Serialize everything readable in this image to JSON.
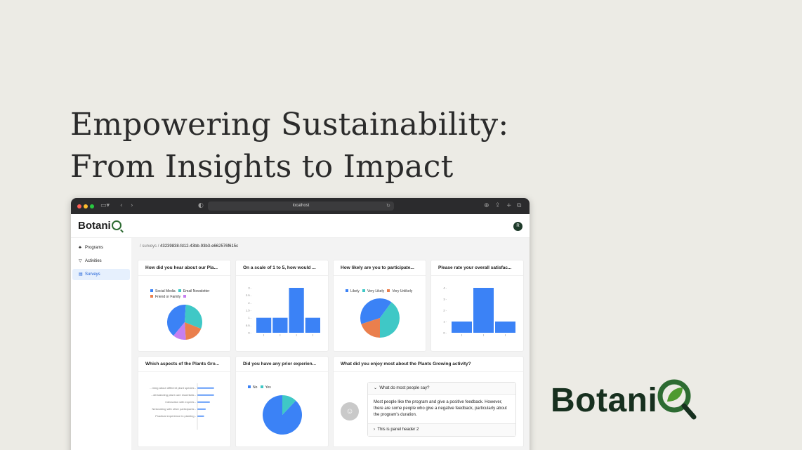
{
  "headline": {
    "line1": "Empowering Sustainability:",
    "line2": "From Insights to Impact"
  },
  "browser": {
    "url": "localhost"
  },
  "app": {
    "logo_text": "Botani",
    "avatar_initial": "R"
  },
  "sidebar": {
    "items": [
      {
        "label": "Programs",
        "icon": "sprout-icon"
      },
      {
        "label": "Activities",
        "icon": "trophy-icon"
      },
      {
        "label": "Surveys",
        "icon": "survey-icon"
      }
    ]
  },
  "breadcrumb": {
    "root": "surveys",
    "sep": "/",
    "current": "43239838-fd12-43bb-93b3-e662576f615c"
  },
  "cards": {
    "c1": {
      "title": "How did you hear about our Pla...",
      "legend": [
        "Social Media",
        "Email Newsletter",
        "Friend or Family",
        ""
      ]
    },
    "c2": {
      "title": "On a scale of 1 to 5, how would ..."
    },
    "c3": {
      "title": "How likely are you to participate...",
      "legend": [
        "Likely",
        "Very Likely",
        "Very Unlikely"
      ]
    },
    "c4": {
      "title": "Please rate your overall satisfac..."
    },
    "c5": {
      "title": "Which aspects of the Plants Gro...",
      "labels": [
        "...rning about different plant species",
        "...derstanding plant care essentials",
        "Interaction with experts",
        "Networking with other participants",
        "Practical experience in planting"
      ]
    },
    "c6": {
      "title": "Did you have any prior experien...",
      "legend": [
        "No",
        "Yes"
      ]
    },
    "c7": {
      "title": "What did you enjoy most about the Plants Growing activity?",
      "panel1_header": "What do most people say?",
      "panel1_body": "Most people like the program and give a positive feedback. However, there are some people who give a negative feedback, particularly about the program's duration.",
      "panel2_header": "This is panel header 2"
    }
  },
  "chart_data": [
    {
      "type": "pie",
      "categories": [
        "Social Media",
        "Email Newsletter",
        "Friend or Family",
        ""
      ],
      "values": [
        40,
        30,
        18,
        12
      ]
    },
    {
      "type": "bar",
      "categories": [
        "",
        "",
        "",
        ""
      ],
      "values": [
        1,
        1,
        3,
        1
      ],
      "ylim": [
        0,
        3
      ],
      "yticks": [
        "0",
        "0.5",
        "1",
        "1.5",
        "2",
        "2.5",
        "3"
      ]
    },
    {
      "type": "pie",
      "categories": [
        "Likely",
        "Very Likely",
        "Very Unlikely"
      ],
      "values": [
        40,
        40,
        20
      ]
    },
    {
      "type": "bar",
      "categories": [
        "",
        "",
        ""
      ],
      "values": [
        1,
        4,
        1
      ],
      "ylim": [
        0,
        4
      ],
      "yticks": [
        "0",
        "1",
        "2",
        "3",
        "4"
      ]
    },
    {
      "type": "bar",
      "orientation": "horizontal",
      "categories": [
        "...rning about different plant species",
        "...derstanding plant care essentials",
        "Interaction with experts",
        "Networking with other participants",
        "Practical experience in planting"
      ],
      "values": [
        2,
        2,
        1.5,
        1,
        0.8
      ]
    },
    {
      "type": "pie",
      "categories": [
        "No",
        "Yes"
      ],
      "values": [
        88,
        12
      ]
    }
  ],
  "colors": {
    "blue": "#3b82f6",
    "teal": "#3fc8c6",
    "orange": "#ea7f4d",
    "purple": "#c57ff0",
    "brand_green": "#2d6b32"
  },
  "brand": {
    "big_logo_text": "Botani"
  }
}
